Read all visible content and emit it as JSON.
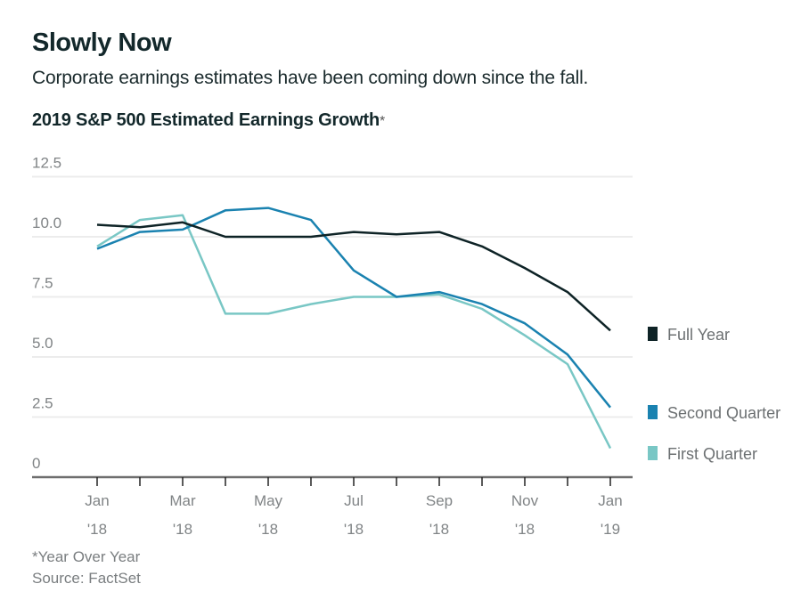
{
  "header": {
    "title": "Slowly Now",
    "subtitle": "Corporate earnings estimates have been coming down since the fall.",
    "chart_title": "2019 S&P 500 Estimated Earnings Growth",
    "chart_title_marker": "*"
  },
  "footer": {
    "note": "*Year Over Year",
    "source": "Source: FactSet"
  },
  "chart_data": {
    "type": "line",
    "title": "2019 S&P 500 Estimated Earnings Growth*",
    "xlabel": "",
    "ylabel": "",
    "x": [
      "Jan 2018",
      "Feb 2018",
      "Mar 2018",
      "Apr 2018",
      "May 2018",
      "Jun 2018",
      "Jul 2018",
      "Aug 2018",
      "Sep 2018",
      "Oct 2018",
      "Nov 2018",
      "Dec 2018",
      "Jan 2019"
    ],
    "x_ticks": [
      {
        "index": 0,
        "line1": "Jan",
        "line2": "'18",
        "labeled": true
      },
      {
        "index": 1,
        "labeled": false
      },
      {
        "index": 2,
        "line1": "Mar",
        "line2": "'18",
        "labeled": true
      },
      {
        "index": 3,
        "labeled": false
      },
      {
        "index": 4,
        "line1": "May",
        "line2": "'18",
        "labeled": true
      },
      {
        "index": 5,
        "labeled": false
      },
      {
        "index": 6,
        "line1": "Jul",
        "line2": "'18",
        "labeled": true
      },
      {
        "index": 7,
        "labeled": false
      },
      {
        "index": 8,
        "line1": "Sep",
        "line2": "'18",
        "labeled": true
      },
      {
        "index": 9,
        "labeled": false
      },
      {
        "index": 10,
        "line1": "Nov",
        "line2": "'18",
        "labeled": true
      },
      {
        "index": 11,
        "labeled": false
      },
      {
        "index": 12,
        "line1": "Jan",
        "line2": "'19",
        "labeled": true
      }
    ],
    "y_ticks": [
      {
        "value": 0,
        "label": "0"
      },
      {
        "value": 2.5,
        "label": "2.5"
      },
      {
        "value": 5.0,
        "label": "5.0"
      },
      {
        "value": 7.5,
        "label": "7.5"
      },
      {
        "value": 10.0,
        "label": "10.0"
      },
      {
        "value": 12.5,
        "label": "12.5"
      }
    ],
    "ylim": [
      0,
      12.5
    ],
    "grid": true,
    "legend_position": "right",
    "series": [
      {
        "name": "Full Year",
        "color": "#0e2326",
        "values": [
          10.5,
          10.4,
          10.6,
          10.0,
          10.0,
          10.0,
          10.2,
          10.1,
          10.2,
          9.6,
          8.7,
          7.7,
          6.1
        ]
      },
      {
        "name": "Second Quarter",
        "color": "#1a82b0",
        "values": [
          9.5,
          10.2,
          10.3,
          11.1,
          11.2,
          10.7,
          8.6,
          7.5,
          7.7,
          7.2,
          6.4,
          5.1,
          2.9
        ]
      },
      {
        "name": "First Quarter",
        "color": "#79c7c5",
        "values": [
          9.6,
          10.7,
          10.9,
          6.8,
          6.8,
          7.2,
          7.5,
          7.5,
          7.6,
          7.0,
          5.9,
          4.7,
          1.2
        ]
      }
    ]
  }
}
